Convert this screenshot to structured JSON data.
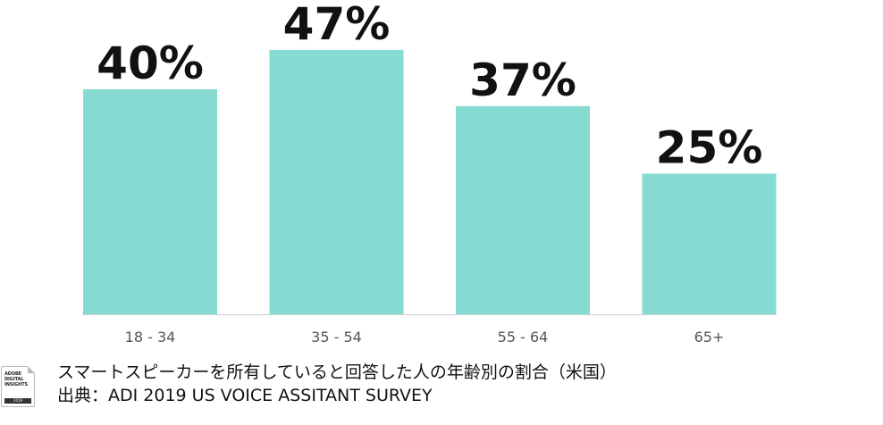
{
  "chart_data": {
    "type": "bar",
    "categories": [
      "18 - 34",
      "35 - 54",
      "55 - 64",
      "65+"
    ],
    "values": [
      40,
      47,
      37,
      25
    ],
    "value_labels": [
      "40%",
      "47%",
      "37%",
      "25%"
    ],
    "ylim": [
      0,
      50
    ],
    "grid": false,
    "legend": "none",
    "bar_color": "#86dbd3"
  },
  "caption": {
    "line1": "スマートスピーカーを所有していると回答した人の年齢別の割合（米国）",
    "line2": "出典：ADI 2019 US VOICE ASSITANT SURVEY"
  },
  "badge": {
    "text": "ADOBE\nDIGITAL\nINSIGHTS",
    "year": "2019",
    "icon": "adobe-digital-insights-logo"
  }
}
